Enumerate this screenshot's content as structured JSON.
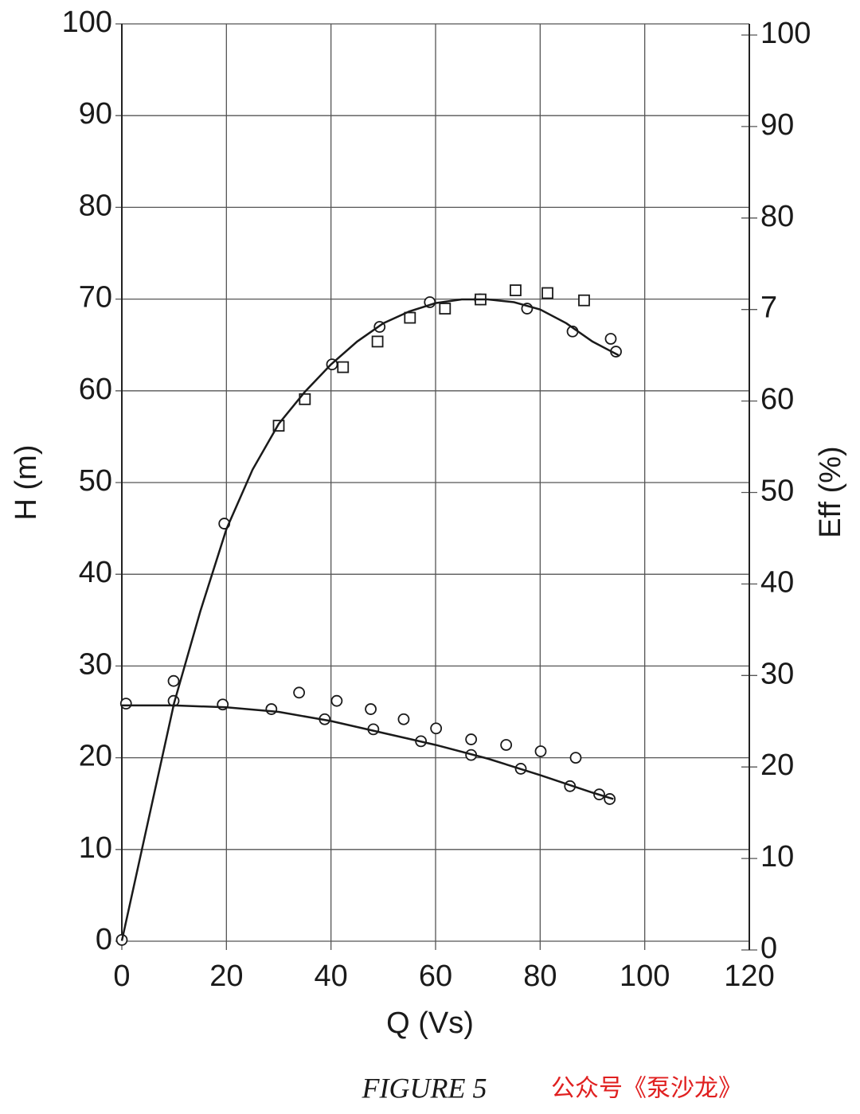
{
  "chart_data": {
    "type": "scatter",
    "xlabel": "Q (Vs)",
    "ylabel": "H (m)",
    "y2label": "Eff (%)",
    "caption": "FIGURE 5",
    "watermark": "公众号《泵沙龙》",
    "xlim": [
      0,
      120
    ],
    "xticks": [
      0,
      20,
      40,
      60,
      80,
      100,
      120
    ],
    "ylim": [
      0,
      100
    ],
    "yticks": [
      0,
      10,
      20,
      30,
      40,
      50,
      60,
      70,
      80,
      90,
      100
    ],
    "y2lim": [
      0,
      100
    ],
    "y2ticks": [
      0,
      10,
      20,
      30,
      40,
      50,
      60,
      {
        "value": 70,
        "label": "7"
      },
      80,
      90,
      100
    ],
    "grid": true,
    "color": "#1a1a1a",
    "series": [
      {
        "marker": "circle",
        "axis": "y2",
        "x": [
          0,
          9.9,
          19.6,
          40.2,
          49.3,
          58.9,
          68.5,
          77.5,
          86.2,
          93.5,
          94.5
        ],
        "values": [
          1.1,
          29.4,
          46.6,
          64.0,
          68.1,
          70.8,
          71.1,
          70.1,
          67.6,
          66.8,
          65.4
        ]
      },
      {
        "marker": "square",
        "axis": "y2",
        "x": [
          30.0,
          35.0,
          42.3,
          48.9,
          55.1,
          61.8,
          68.6,
          75.3,
          81.4,
          88.4
        ],
        "values": [
          57.3,
          60.2,
          63.7,
          66.5,
          69.1,
          70.1,
          71.1,
          72.1,
          71.8,
          71.0
        ]
      },
      {
        "marker": "circle",
        "x": [
          0.8,
          9.9,
          19.3,
          28.6,
          33.9,
          38.8,
          41.1,
          47.6,
          48.1,
          53.9,
          57.2,
          60.1,
          66.8,
          66.8,
          73.5,
          76.3,
          80.1,
          85.7,
          86.8,
          91.3,
          93.3
        ],
        "values": [
          25.9,
          26.2,
          25.8,
          25.3,
          27.1,
          24.2,
          26.2,
          25.3,
          23.1,
          24.2,
          21.8,
          23.2,
          22.0,
          20.3,
          21.4,
          18.8,
          20.7,
          16.9,
          20.0,
          16.0,
          15.5
        ]
      },
      {
        "marker": "none",
        "axis": "y2",
        "x": [
          0,
          5,
          10,
          15,
          20,
          25,
          30,
          35,
          40,
          45,
          50,
          55,
          60,
          65,
          70,
          75,
          80,
          85,
          90,
          95
        ],
        "values": [
          1,
          14,
          27,
          37,
          46,
          52.5,
          57.5,
          61,
          64,
          66.5,
          68.5,
          69.8,
          70.7,
          71.1,
          71.1,
          70.8,
          70,
          68.5,
          66.5,
          65
        ]
      },
      {
        "marker": "none",
        "x": [
          0,
          10,
          20,
          30,
          40,
          50,
          60,
          70,
          80,
          90,
          94
        ],
        "values": [
          25.7,
          25.7,
          25.5,
          25.0,
          24.0,
          22.7,
          21.4,
          19.9,
          18.1,
          16.2,
          15.5
        ]
      }
    ]
  }
}
